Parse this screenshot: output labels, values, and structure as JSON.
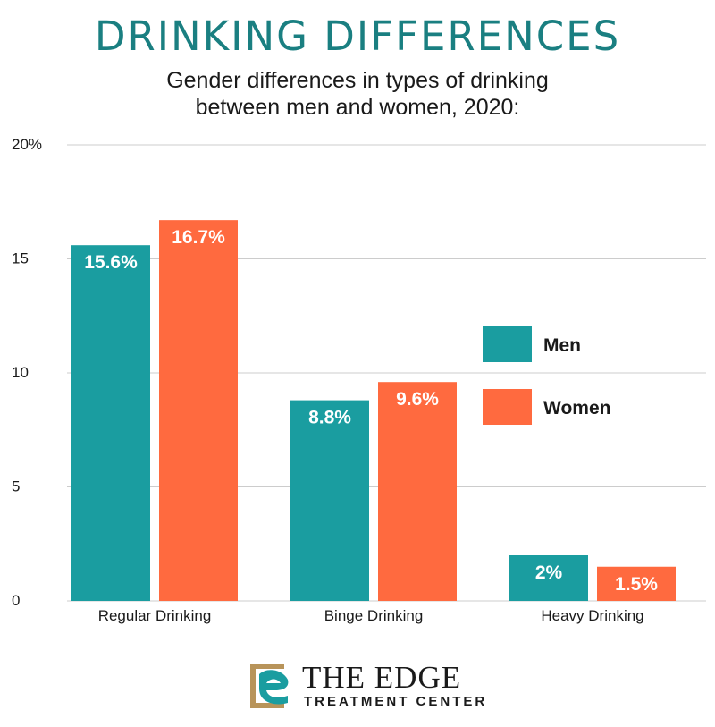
{
  "header": {
    "title": "DRINKING DIFFERENCES",
    "subtitle_line1": "Gender differences in types of drinking",
    "subtitle_line2": "between men and women, 2020:"
  },
  "chart_data": {
    "type": "bar",
    "categories": [
      "Regular Drinking",
      "Binge Drinking",
      "Heavy Drinking"
    ],
    "series": [
      {
        "name": "Men",
        "color": "#1a9da0",
        "values": [
          15.6,
          8.8,
          2
        ],
        "labels": [
          "15.6%",
          "8.8%",
          "2%"
        ]
      },
      {
        "name": "Women",
        "color": "#ff6a3f",
        "values": [
          16.7,
          9.6,
          1.5
        ],
        "labels": [
          "16.7%",
          "9.6%",
          "1.5%"
        ]
      }
    ],
    "ylim": [
      0,
      20
    ],
    "yticks": [
      0,
      5,
      10,
      15,
      20
    ],
    "ytick_labels": [
      "0",
      "5",
      "10",
      "15",
      "20%"
    ],
    "grid": true,
    "legend": "right"
  },
  "footer": {
    "logo_name": "THE EDGE",
    "logo_sub": "TREATMENT CENTER"
  },
  "colors": {
    "title": "#1a7f81",
    "men": "#1a9da0",
    "women": "#ff6a3f",
    "grid": "#cccccc"
  }
}
